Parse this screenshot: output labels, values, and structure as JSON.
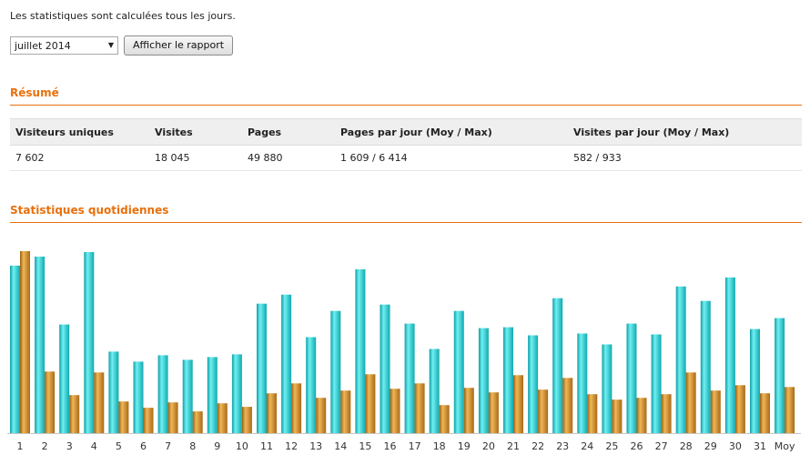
{
  "intro_text": "Les statistiques sont calculées tous les jours.",
  "controls": {
    "month_selected": "juillet 2014",
    "report_button": "Afficher le rapport"
  },
  "summary": {
    "title": "Résumé",
    "headers": [
      "Visiteurs uniques",
      "Visites",
      "Pages",
      "Pages par jour (Moy / Max)",
      "Visites par jour (Moy / Max)"
    ],
    "values": [
      "7 602",
      "18 045",
      "49 880",
      "1 609 / 6 414",
      "582 / 933"
    ]
  },
  "daily": {
    "title": "Statistiques quotidiennes"
  },
  "colors": {
    "accent": "#e8700c",
    "series_a": "#25c3c8",
    "series_b": "#c8872a"
  },
  "chart_data": {
    "type": "bar",
    "categories": [
      "1",
      "2",
      "3",
      "4",
      "5",
      "6",
      "7",
      "8",
      "9",
      "10",
      "11",
      "12",
      "13",
      "14",
      "15",
      "16",
      "17",
      "18",
      "19",
      "20",
      "21",
      "22",
      "23",
      "24",
      "25",
      "26",
      "27",
      "28",
      "29",
      "30",
      "31",
      "Moy"
    ],
    "series": [
      {
        "values": [
          92.5,
          97.5,
          60,
          100,
          45,
          39.5,
          43,
          40.5,
          42,
          43.5,
          71.5,
          76.5,
          53,
          67.5,
          90.5,
          71,
          60.5,
          46.5,
          67.5,
          58,
          58.5,
          54,
          74.5,
          55,
          49,
          60.5,
          54.5,
          81,
          73,
          86,
          57.5,
          63.5
        ]
      },
      {
        "values": [
          100.5,
          34,
          21,
          33.5,
          17.5,
          14,
          17,
          12,
          16.5,
          14.5,
          22,
          27.5,
          19.5,
          23.5,
          32.5,
          24.5,
          27.5,
          15.5,
          25,
          22.5,
          32,
          24,
          30.5,
          21.5,
          18.5,
          19.5,
          21.5,
          33.5,
          23.5,
          26.5,
          22,
          25.5
        ]
      }
    ],
    "ylim": [
      0,
      100.5
    ],
    "grid": false,
    "legend": "none"
  }
}
